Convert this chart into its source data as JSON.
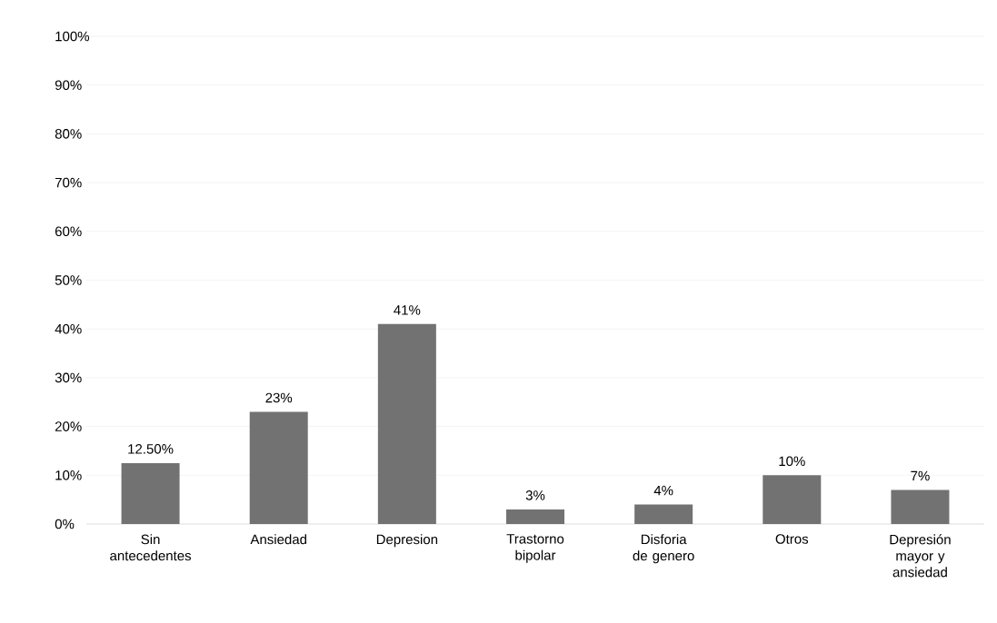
{
  "chart_data": {
    "type": "bar",
    "categories": [
      "Sin antecedentes",
      "Ansiedad",
      "Depresion",
      "Trastorno bipolar",
      "Disforia de genero",
      "Otros",
      "Depresión mayor y ansiedad"
    ],
    "values": [
      12.5,
      23,
      41,
      3,
      4,
      10,
      7
    ],
    "value_labels": [
      "12.50%",
      "23%",
      "41%",
      "3%",
      "4%",
      "10%",
      "7%"
    ],
    "color": "#727272",
    "ylim": [
      0,
      100
    ],
    "yticks": [
      {
        "value": 0,
        "label": "0%"
      },
      {
        "value": 10,
        "label": "10%"
      },
      {
        "value": 20,
        "label": "20%"
      },
      {
        "value": 30,
        "label": "30%"
      },
      {
        "value": 40,
        "label": "40%"
      },
      {
        "value": 50,
        "label": "50%"
      },
      {
        "value": 60,
        "label": "60%"
      },
      {
        "value": 70,
        "label": "70%"
      },
      {
        "value": 80,
        "label": "80%"
      },
      {
        "value": 90,
        "label": "90%"
      },
      {
        "value": 100,
        "label": "100%"
      }
    ],
    "grid": "y"
  }
}
